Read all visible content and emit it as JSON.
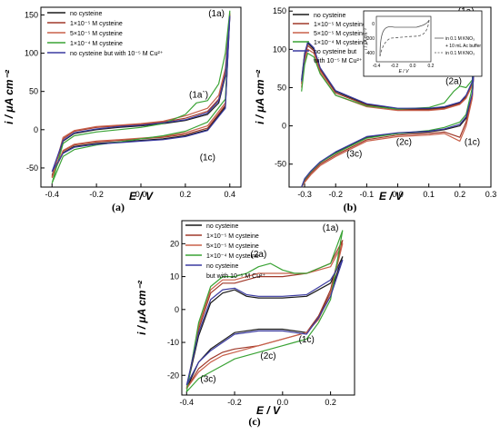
{
  "colors": {
    "no_cysteine": "#1a1a1a",
    "cys_1e5": "#a0392a",
    "cys_5e5": "#c8604a",
    "cys_1e4": "#3aa335",
    "cu_ctrl": "#3a3aa0"
  },
  "chart_data": [
    {
      "type": "line",
      "panel_label": "(a)",
      "xlabel": "E / V",
      "ylabel": "i / μA cm⁻²",
      "xlim": [
        -0.45,
        0.45
      ],
      "ylim": [
        -75,
        160
      ],
      "xticks": [
        "-0.4",
        "-0.2",
        "0.0",
        "0.2",
        "0.4"
      ],
      "xtick_values": [
        -0.4,
        -0.2,
        0.0,
        0.2,
        0.4
      ],
      "yticks": [
        "-50",
        "0",
        "50",
        "100",
        "150"
      ],
      "ytick_values": [
        -50,
        0,
        50,
        100,
        150
      ],
      "legend_position": "top-left",
      "legend": [
        {
          "label": "no cysteine",
          "color_key": "no_cysteine"
        },
        {
          "label": "1×10⁻⁵ M cysteine",
          "color_key": "cys_1e5"
        },
        {
          "label": "5×10⁻⁵ M cysteine",
          "color_key": "cys_5e5"
        },
        {
          "label": "1×10⁻⁴ M cysteine",
          "color_key": "cys_1e4"
        },
        {
          "label": "no cysteine but with 10⁻⁵ M Cu²⁺",
          "color_key": "cu_ctrl"
        }
      ],
      "annotations": [
        {
          "text": "(1a)",
          "x": 0.34,
          "y": 148
        },
        {
          "text": "(1a`)",
          "x": 0.26,
          "y": 42
        },
        {
          "text": "(1c)",
          "x": 0.3,
          "y": -40
        }
      ],
      "series": [
        {
          "name": "no cysteine",
          "color_key": "no_cysteine",
          "x": [
            -0.4,
            -0.35,
            -0.3,
            -0.2,
            -0.1,
            0.0,
            0.1,
            0.2,
            0.3,
            0.35,
            0.38,
            0.4,
            0.38,
            0.3,
            0.2,
            0.1,
            0.0,
            -0.1,
            -0.2,
            -0.3,
            -0.35,
            -0.4
          ],
          "y": [
            -60,
            -15,
            -5,
            0,
            3,
            5,
            8,
            12,
            20,
            35,
            70,
            150,
            30,
            0,
            -8,
            -12,
            -14,
            -16,
            -18,
            -22,
            -30,
            -60
          ]
        },
        {
          "name": "1×10⁻⁵ M cysteine",
          "color_key": "cys_1e5",
          "x": [
            -0.4,
            -0.35,
            -0.3,
            -0.2,
            -0.1,
            0.0,
            0.1,
            0.2,
            0.3,
            0.35,
            0.38,
            0.4,
            0.38,
            0.3,
            0.2,
            0.1,
            0.0,
            -0.1,
            -0.2,
            -0.3,
            -0.35,
            -0.4
          ],
          "y": [
            -62,
            -12,
            -2,
            3,
            5,
            7,
            10,
            15,
            24,
            40,
            75,
            150,
            32,
            2,
            -6,
            -10,
            -12,
            -14,
            -16,
            -20,
            -28,
            -62
          ]
        },
        {
          "name": "5×10⁻⁵ M cysteine",
          "color_key": "cys_5e5",
          "x": [
            -0.4,
            -0.35,
            -0.3,
            -0.2,
            -0.1,
            0.0,
            0.1,
            0.2,
            0.3,
            0.35,
            0.38,
            0.4,
            0.38,
            0.3,
            0.2,
            0.1,
            0.0,
            -0.1,
            -0.2,
            -0.3,
            -0.35,
            -0.4
          ],
          "y": [
            -63,
            -10,
            -1,
            4,
            6,
            8,
            11,
            18,
            28,
            45,
            80,
            152,
            35,
            5,
            -4,
            -9,
            -11,
            -13,
            -15,
            -19,
            -27,
            -63
          ]
        },
        {
          "name": "1×10⁻⁴ M cysteine",
          "color_key": "cys_1e4",
          "x": [
            -0.4,
            -0.35,
            -0.3,
            -0.2,
            -0.1,
            0.0,
            0.1,
            0.2,
            0.25,
            0.3,
            0.35,
            0.38,
            0.4,
            0.38,
            0.3,
            0.2,
            0.1,
            0.0,
            -0.1,
            -0.2,
            -0.3,
            -0.35,
            -0.4
          ],
          "y": [
            -70,
            -18,
            -8,
            -3,
            0,
            3,
            8,
            20,
            35,
            38,
            60,
            100,
            155,
            40,
            10,
            -2,
            -8,
            -12,
            -16,
            -20,
            -26,
            -35,
            -70
          ]
        },
        {
          "name": "no cysteine but with 10⁻⁵ M Cu²⁺",
          "color_key": "cu_ctrl",
          "x": [
            -0.4,
            -0.35,
            -0.3,
            -0.2,
            -0.1,
            0.0,
            0.1,
            0.2,
            0.3,
            0.35,
            0.38,
            0.4,
            0.38,
            0.3,
            0.2,
            0.1,
            0.0,
            -0.1,
            -0.2,
            -0.3,
            -0.35,
            -0.4
          ],
          "y": [
            -55,
            -14,
            -4,
            1,
            4,
            6,
            9,
            13,
            22,
            38,
            72,
            148,
            28,
            -1,
            -9,
            -13,
            -15,
            -17,
            -19,
            -23,
            -31,
            -55
          ]
        }
      ]
    },
    {
      "type": "line",
      "panel_label": "(b)",
      "xlabel": "E / V",
      "ylabel": "i / μA cm⁻²",
      "xlim": [
        -0.35,
        0.3
      ],
      "ylim": [
        -80,
        155
      ],
      "xticks": [
        "-0.3",
        "-0.2",
        "-0.1",
        "0.0",
        "0.1",
        "0.2",
        "0.3"
      ],
      "xtick_values": [
        -0.3,
        -0.2,
        -0.1,
        0.0,
        0.1,
        0.2,
        0.3
      ],
      "yticks": [
        "-50",
        "0",
        "50",
        "100",
        "150"
      ],
      "ytick_values": [
        -50,
        0,
        50,
        100,
        150
      ],
      "legend_position": "top-left",
      "legend": [
        {
          "label": "no cysteine",
          "color_key": "no_cysteine"
        },
        {
          "label": "1×10⁻⁵ M cysteine",
          "color_key": "cys_1e5"
        },
        {
          "label": "5×10⁻⁵ M cysteine",
          "color_key": "cys_5e5"
        },
        {
          "label": "1×10⁻⁴ M cysteine",
          "color_key": "cys_1e4"
        },
        {
          "label": "no cysteine but",
          "color_key": "cu_ctrl"
        },
        {
          "label": "with 10⁻⁵ M Cu²⁺",
          "color_key": "none"
        }
      ],
      "annotations": [
        {
          "text": "(1a)",
          "x": 0.22,
          "y": 146
        },
        {
          "text": "(2a)",
          "x": 0.18,
          "y": 55
        },
        {
          "text": "(2c)",
          "x": 0.02,
          "y": -25
        },
        {
          "text": "(3c)",
          "x": -0.14,
          "y": -40
        },
        {
          "text": "(1c)",
          "x": 0.24,
          "y": -25
        }
      ],
      "inset": {
        "xticks": [
          "-0.4",
          "-0.2",
          "0.0",
          "0.2"
        ],
        "yticks": [
          "0",
          "-200",
          "-400"
        ],
        "xlabel": "E / V",
        "ylabel": "i / μA cm⁻²",
        "legend": [
          "in 0.1 M KNO₃",
          "+ 10 mL Ac buffer",
          "in 0.1 M KNO₃"
        ]
      },
      "series": [
        {
          "name": "no cysteine",
          "color_key": "no_cysteine",
          "x": [
            -0.31,
            -0.3,
            -0.29,
            -0.27,
            -0.25,
            -0.2,
            -0.1,
            0.0,
            0.1,
            0.15,
            0.2,
            0.22,
            0.24,
            0.25,
            0.24,
            0.22,
            0.2,
            0.15,
            0.1,
            0.0,
            -0.1,
            -0.2,
            -0.25,
            -0.28,
            -0.3,
            -0.31
          ],
          "y": [
            60,
            95,
            108,
            100,
            75,
            45,
            28,
            22,
            22,
            24,
            30,
            38,
            55,
            100,
            40,
            10,
            0,
            -5,
            -8,
            -10,
            -15,
            -35,
            -48,
            -60,
            -70,
            -80
          ]
        },
        {
          "name": "1×10⁻⁵ M cysteine",
          "color_key": "cys_1e5",
          "x": [
            -0.31,
            -0.3,
            -0.29,
            -0.27,
            -0.25,
            -0.2,
            -0.1,
            0.0,
            0.1,
            0.15,
            0.2,
            0.22,
            0.24,
            0.25,
            0.24,
            0.22,
            0.2,
            0.15,
            0.1,
            0.0,
            -0.1,
            -0.2,
            -0.25,
            -0.28,
            -0.3,
            -0.31
          ],
          "y": [
            55,
            90,
            105,
            98,
            73,
            43,
            27,
            21,
            21,
            23,
            29,
            37,
            54,
            105,
            38,
            5,
            -15,
            -8,
            -10,
            -12,
            -18,
            -38,
            -50,
            -62,
            -72,
            -80
          ]
        },
        {
          "name": "5×10⁻⁵ M cysteine",
          "color_key": "cys_5e5",
          "x": [
            -0.31,
            -0.3,
            -0.29,
            -0.27,
            -0.25,
            -0.2,
            -0.1,
            0.0,
            0.1,
            0.15,
            0.2,
            0.22,
            0.24,
            0.25,
            0.24,
            0.22,
            0.2,
            0.15,
            0.1,
            0.0,
            -0.1,
            -0.2,
            -0.25,
            -0.28,
            -0.3,
            -0.31
          ],
          "y": [
            50,
            85,
            100,
            95,
            70,
            40,
            25,
            20,
            20,
            22,
            28,
            36,
            53,
            110,
            36,
            0,
            -20,
            -10,
            -12,
            -14,
            -20,
            -40,
            -52,
            -64,
            -74,
            -80
          ]
        },
        {
          "name": "1×10⁻⁴ M cysteine",
          "color_key": "cys_1e4",
          "x": [
            -0.31,
            -0.3,
            -0.29,
            -0.27,
            -0.25,
            -0.2,
            -0.1,
            0.0,
            0.1,
            0.15,
            0.18,
            0.2,
            0.22,
            0.24,
            0.25,
            0.24,
            0.22,
            0.2,
            0.15,
            0.1,
            0.0,
            -0.1,
            -0.2,
            -0.25,
            -0.28,
            -0.3,
            -0.31
          ],
          "y": [
            45,
            80,
            95,
            90,
            68,
            40,
            26,
            22,
            24,
            30,
            45,
            52,
            50,
            60,
            150,
            50,
            15,
            5,
            -2,
            -6,
            -10,
            -16,
            -36,
            -48,
            -60,
            -70,
            -80
          ]
        },
        {
          "name": "no cysteine but with 10⁻⁵ M Cu²⁺",
          "color_key": "cu_ctrl",
          "x": [
            -0.31,
            -0.3,
            -0.29,
            -0.27,
            -0.25,
            -0.2,
            -0.1,
            0.0,
            0.1,
            0.15,
            0.2,
            0.22,
            0.24,
            0.25,
            0.24,
            0.22,
            0.2,
            0.15,
            0.1,
            0.0,
            -0.1,
            -0.2,
            -0.25,
            -0.28,
            -0.3,
            -0.31
          ],
          "y": [
            58,
            93,
            110,
            102,
            76,
            46,
            29,
            23,
            23,
            25,
            31,
            40,
            58,
            98,
            42,
            12,
            2,
            -4,
            -7,
            -9,
            -14,
            -34,
            -47,
            -59,
            -69,
            -80
          ]
        }
      ]
    },
    {
      "type": "line",
      "panel_label": "(c)",
      "xlabel": "E / V",
      "ylabel": "i / μA cm⁻²",
      "xlim": [
        -0.42,
        0.3
      ],
      "ylim": [
        -26,
        27
      ],
      "xticks": [
        "-0.4",
        "-0.2",
        "0.0",
        "0.2"
      ],
      "xtick_values": [
        -0.4,
        -0.2,
        0.0,
        0.2
      ],
      "yticks": [
        "-20",
        "-10",
        "0",
        "10",
        "20"
      ],
      "ytick_values": [
        -20,
        -10,
        0,
        10,
        20
      ],
      "legend_position": "top-left",
      "legend": [
        {
          "label": "no cysteine",
          "color_key": "no_cysteine"
        },
        {
          "label": "1×10⁻⁵ M cysteine",
          "color_key": "cys_1e5"
        },
        {
          "label": "5×10⁻⁵ M cysteine",
          "color_key": "cys_5e5"
        },
        {
          "label": "1×10⁻⁴ M cysteine",
          "color_key": "cys_1e4"
        },
        {
          "label": "no cysteine",
          "color_key": "cu_ctrl"
        },
        {
          "label": "but with 10⁻⁵ M Cu²⁺",
          "color_key": "none"
        }
      ],
      "annotations": [
        {
          "text": "(1a)",
          "x": 0.2,
          "y": 24
        },
        {
          "text": "(2a)",
          "x": -0.1,
          "y": 16
        },
        {
          "text": "(1c)",
          "x": 0.1,
          "y": -10
        },
        {
          "text": "(2c)",
          "x": -0.06,
          "y": -15
        },
        {
          "text": "(3c)",
          "x": -0.31,
          "y": -22
        }
      ],
      "series": [
        {
          "name": "no cysteine",
          "color_key": "no_cysteine",
          "x": [
            -0.4,
            -0.35,
            -0.3,
            -0.25,
            -0.2,
            -0.15,
            -0.1,
            0.0,
            0.1,
            0.2,
            0.25,
            0.2,
            0.15,
            0.1,
            0.05,
            0.0,
            -0.1,
            -0.2,
            -0.3,
            -0.35,
            -0.4
          ],
          "y": [
            -24,
            -8,
            2,
            5,
            6,
            4,
            3.5,
            3.5,
            4,
            8,
            16,
            5,
            -2,
            -7,
            -6.5,
            -6,
            -6,
            -7,
            -12,
            -16,
            -24
          ]
        },
        {
          "name": "1×10⁻⁵ M cysteine",
          "color_key": "cys_1e5",
          "x": [
            -0.4,
            -0.35,
            -0.3,
            -0.25,
            -0.2,
            -0.15,
            -0.1,
            0.0,
            0.1,
            0.2,
            0.25,
            0.2,
            0.15,
            0.1,
            0.05,
            0.0,
            -0.1,
            -0.2,
            -0.25,
            -0.3,
            -0.35,
            -0.4
          ],
          "y": [
            -24,
            -6,
            5,
            8,
            8,
            9,
            10,
            10,
            11,
            14,
            21,
            6,
            -2,
            -7,
            -8,
            -9,
            -11,
            -12,
            -13,
            -15,
            -18,
            -24
          ]
        },
        {
          "name": "5×10⁻⁵ M cysteine",
          "color_key": "cys_5e5",
          "x": [
            -0.4,
            -0.35,
            -0.3,
            -0.25,
            -0.2,
            -0.15,
            -0.1,
            0.0,
            0.1,
            0.2,
            0.25,
            0.2,
            0.15,
            0.1,
            0.05,
            0.0,
            -0.1,
            -0.2,
            -0.25,
            -0.3,
            -0.35,
            -0.4
          ],
          "y": [
            -24,
            -5,
            6,
            9,
            9,
            10,
            11,
            11,
            11,
            13,
            20,
            5,
            -3,
            -7,
            -8,
            -9,
            -11,
            -13,
            -14,
            -16,
            -19,
            -24
          ]
        },
        {
          "name": "1×10⁻⁴ M cysteine",
          "color_key": "cys_1e4",
          "x": [
            -0.4,
            -0.35,
            -0.3,
            -0.25,
            -0.2,
            -0.15,
            -0.1,
            -0.05,
            0.0,
            0.05,
            0.1,
            0.2,
            0.25,
            0.2,
            0.15,
            0.1,
            0.05,
            0.0,
            -0.1,
            -0.2,
            -0.3,
            -0.35,
            -0.4
          ],
          "y": [
            -25,
            -4,
            7,
            10,
            10,
            11,
            13,
            14,
            12,
            11,
            11,
            14,
            24,
            3,
            -4,
            -9,
            -10,
            -11,
            -13,
            -15,
            -19,
            -21,
            -25
          ]
        },
        {
          "name": "no cysteine but with 10⁻⁵ M Cu²⁺",
          "color_key": "cu_ctrl",
          "x": [
            -0.4,
            -0.35,
            -0.3,
            -0.25,
            -0.2,
            -0.15,
            -0.1,
            0.0,
            0.1,
            0.2,
            0.25,
            0.2,
            0.15,
            0.1,
            0.05,
            0.0,
            -0.1,
            -0.2,
            -0.3,
            -0.35,
            -0.4
          ],
          "y": [
            -23,
            -7,
            3,
            6,
            6.5,
            4.5,
            4,
            4,
            4.5,
            9,
            15,
            4,
            -2.5,
            -7.5,
            -7,
            -6.5,
            -6.5,
            -7.5,
            -12.5,
            -16,
            -23
          ]
        }
      ]
    }
  ]
}
